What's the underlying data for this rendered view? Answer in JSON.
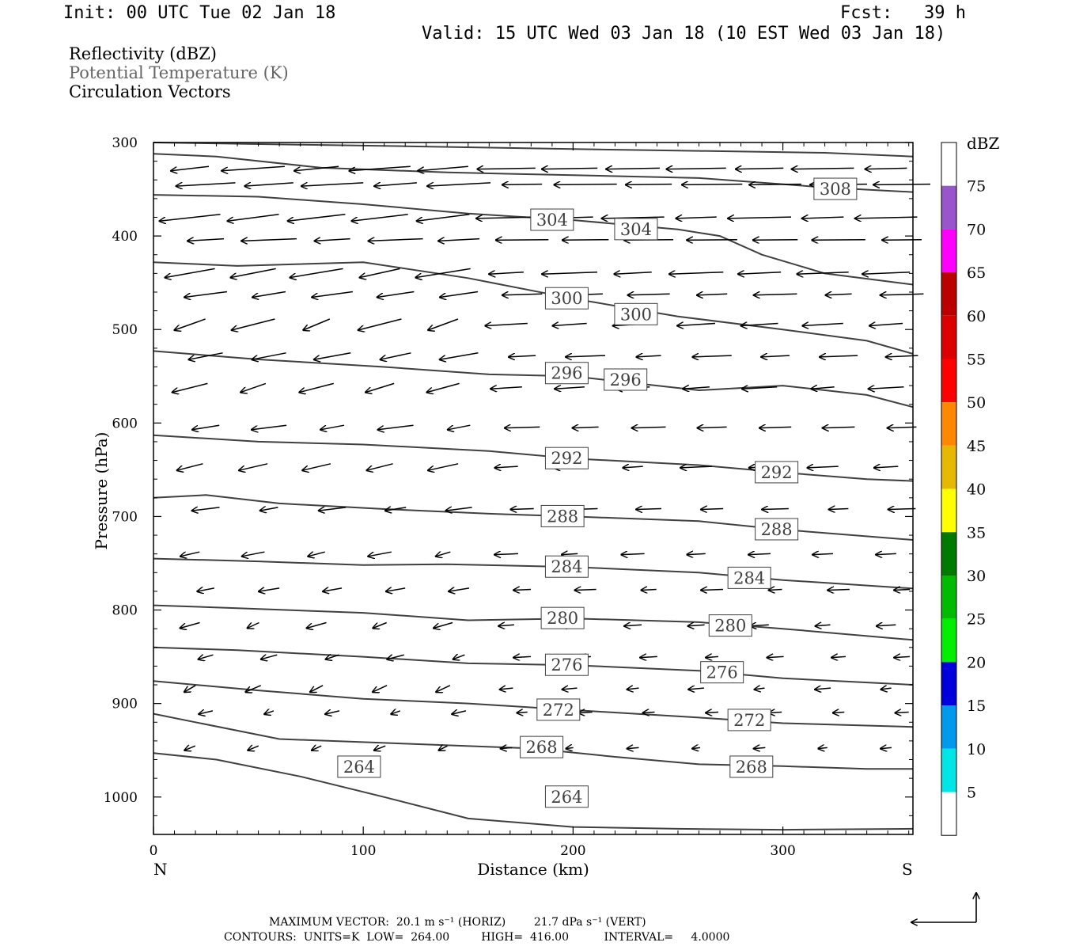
{
  "header": {
    "init": "Init: 00 UTC Tue 02 Jan 18",
    "fcst": "Fcst:   39 h",
    "valid": "Valid: 15 UTC Wed 03 Jan 18 (10 EST Wed 03 Jan 18)"
  },
  "legend": {
    "line1": "Reflectivity (dBZ)",
    "line2": "Potential Temperature (K)",
    "line3": "Circulation Vectors",
    "line2_color": "#666666"
  },
  "chart_data": {
    "type": "cross-section",
    "xlabel": "Distance (km)",
    "ylabel": "Pressure (hPa)",
    "xlim": [
      0,
      362
    ],
    "ylim": [
      300,
      1040
    ],
    "y_scale": "linear, inverted (pressure decreasing upward)",
    "x_ticks": [
      "0",
      "100",
      "200",
      "300"
    ],
    "x_tick_values": [
      0,
      100,
      200,
      300
    ],
    "y_ticks": [
      "300",
      "400",
      "500",
      "600",
      "700",
      "800",
      "900",
      "1000"
    ],
    "y_tick_values": [
      300,
      400,
      500,
      600,
      700,
      800,
      900,
      1000
    ],
    "left_end_label": "N",
    "right_end_label": "S",
    "contour_color": "#404040",
    "contours": [
      {
        "label": "308",
        "label_pos": [
          [
            325,
            350
          ]
        ],
        "points": [
          [
            0,
            300
          ],
          [
            60,
            302
          ],
          [
            120,
            304
          ],
          [
            200,
            307
          ],
          [
            260,
            309
          ],
          [
            320,
            311
          ],
          [
            362,
            315
          ]
        ]
      },
      {
        "label": "",
        "label_pos": [],
        "points": [
          [
            0,
            312
          ],
          [
            30,
            315
          ],
          [
            80,
            327
          ],
          [
            140,
            332
          ],
          [
            200,
            335
          ],
          [
            260,
            338
          ],
          [
            320,
            348
          ],
          [
            362,
            353
          ]
        ]
      },
      {
        "label": "304",
        "label_pos": [
          [
            190,
            383
          ],
          [
            230,
            393
          ]
        ],
        "points": [
          [
            0,
            356
          ],
          [
            50,
            358
          ],
          [
            100,
            366
          ],
          [
            150,
            376
          ],
          [
            200,
            383
          ],
          [
            250,
            393
          ],
          [
            270,
            400
          ],
          [
            290,
            420
          ],
          [
            320,
            440
          ],
          [
            362,
            452
          ]
        ]
      },
      {
        "label": "300",
        "label_pos": [
          [
            197,
            467
          ],
          [
            230,
            484
          ]
        ],
        "points": [
          [
            0,
            428
          ],
          [
            40,
            432
          ],
          [
            100,
            428
          ],
          [
            150,
            445
          ],
          [
            200,
            467
          ],
          [
            250,
            486
          ],
          [
            300,
            500
          ],
          [
            340,
            512
          ],
          [
            362,
            526
          ]
        ]
      },
      {
        "label": "296",
        "label_pos": [
          [
            197,
            547
          ],
          [
            225,
            554
          ]
        ],
        "points": [
          [
            0,
            523
          ],
          [
            50,
            532
          ],
          [
            110,
            540
          ],
          [
            160,
            548
          ],
          [
            200,
            550
          ],
          [
            260,
            565
          ],
          [
            300,
            560
          ],
          [
            340,
            570
          ],
          [
            362,
            583
          ]
        ]
      },
      {
        "label": "292",
        "label_pos": [
          [
            197,
            638
          ],
          [
            297,
            653
          ]
        ],
        "points": [
          [
            0,
            613
          ],
          [
            50,
            620
          ],
          [
            100,
            623
          ],
          [
            160,
            630
          ],
          [
            200,
            638
          ],
          [
            260,
            645
          ],
          [
            300,
            653
          ],
          [
            340,
            660
          ],
          [
            362,
            662
          ]
        ]
      },
      {
        "label": "288",
        "label_pos": [
          [
            195,
            700
          ],
          [
            297,
            714
          ]
        ],
        "points": [
          [
            0,
            680
          ],
          [
            25,
            677
          ],
          [
            60,
            686
          ],
          [
            110,
            692
          ],
          [
            160,
            697
          ],
          [
            200,
            700
          ],
          [
            260,
            705
          ],
          [
            300,
            714
          ],
          [
            362,
            725
          ]
        ]
      },
      {
        "label": "284",
        "label_pos": [
          [
            197,
            754
          ],
          [
            284,
            766
          ]
        ],
        "points": [
          [
            0,
            745
          ],
          [
            50,
            748
          ],
          [
            100,
            752
          ],
          [
            140,
            751
          ],
          [
            200,
            754
          ],
          [
            260,
            760
          ],
          [
            300,
            768
          ],
          [
            362,
            777
          ]
        ]
      },
      {
        "label": "280",
        "label_pos": [
          [
            195,
            809
          ],
          [
            275,
            817
          ]
        ],
        "points": [
          [
            0,
            795
          ],
          [
            40,
            798
          ],
          [
            100,
            803
          ],
          [
            150,
            811
          ],
          [
            200,
            809
          ],
          [
            260,
            813
          ],
          [
            300,
            820
          ],
          [
            362,
            832
          ]
        ]
      },
      {
        "label": "276",
        "label_pos": [
          [
            197,
            859
          ],
          [
            271,
            867
          ]
        ],
        "points": [
          [
            0,
            840
          ],
          [
            40,
            843
          ],
          [
            100,
            850
          ],
          [
            150,
            857
          ],
          [
            200,
            859
          ],
          [
            260,
            865
          ],
          [
            300,
            873
          ],
          [
            362,
            880
          ]
        ]
      },
      {
        "label": "272",
        "label_pos": [
          [
            193,
            907
          ],
          [
            284,
            918
          ]
        ],
        "points": [
          [
            0,
            876
          ],
          [
            50,
            886
          ],
          [
            100,
            895
          ],
          [
            150,
            900
          ],
          [
            200,
            907
          ],
          [
            260,
            915
          ],
          [
            300,
            921
          ],
          [
            362,
            925
          ]
        ]
      },
      {
        "label": "268",
        "label_pos": [
          [
            185,
            947
          ],
          [
            285,
            968
          ]
        ],
        "points": [
          [
            0,
            911
          ],
          [
            20,
            920
          ],
          [
            60,
            938
          ],
          [
            120,
            943
          ],
          [
            180,
            948
          ],
          [
            220,
            957
          ],
          [
            260,
            965
          ],
          [
            300,
            967
          ],
          [
            340,
            970
          ],
          [
            362,
            970
          ]
        ]
      },
      {
        "label": "264",
        "label_pos": [
          [
            98,
            968
          ],
          [
            197,
            1000
          ]
        ],
        "points": [
          [
            0,
            953
          ],
          [
            30,
            960
          ],
          [
            70,
            978
          ],
          [
            110,
            1000
          ],
          [
            150,
            1023
          ],
          [
            200,
            1032
          ],
          [
            250,
            1034
          ],
          [
            300,
            1035
          ],
          [
            362,
            1034
          ]
        ]
      }
    ],
    "vector_label": "MAXIMUM VECTOR:  20.1 m s⁻¹ (HORIZ)        21.7 dPa s⁻¹ (VERT)",
    "contour_info": "CONTOURS:  UNITS=K  LOW=  264.00         HIGH=  416.00          INTERVAL=     4.0000"
  },
  "colorbar": {
    "title": "dBZ",
    "labels": [
      "75",
      "70",
      "65",
      "60",
      "55",
      "50",
      "45",
      "40",
      "35",
      "30",
      "25",
      "20",
      "15",
      "10",
      "5"
    ],
    "colors": [
      "#ffffff",
      "#9955cc",
      "#ff00ff",
      "#bb0000",
      "#dd0000",
      "#ff0000",
      "#ff8800",
      "#e6b800",
      "#ffff00",
      "#007a00",
      "#00bb00",
      "#00ee00",
      "#0000dd",
      "#0099ee",
      "#00e6e6",
      "#ffffff"
    ]
  }
}
